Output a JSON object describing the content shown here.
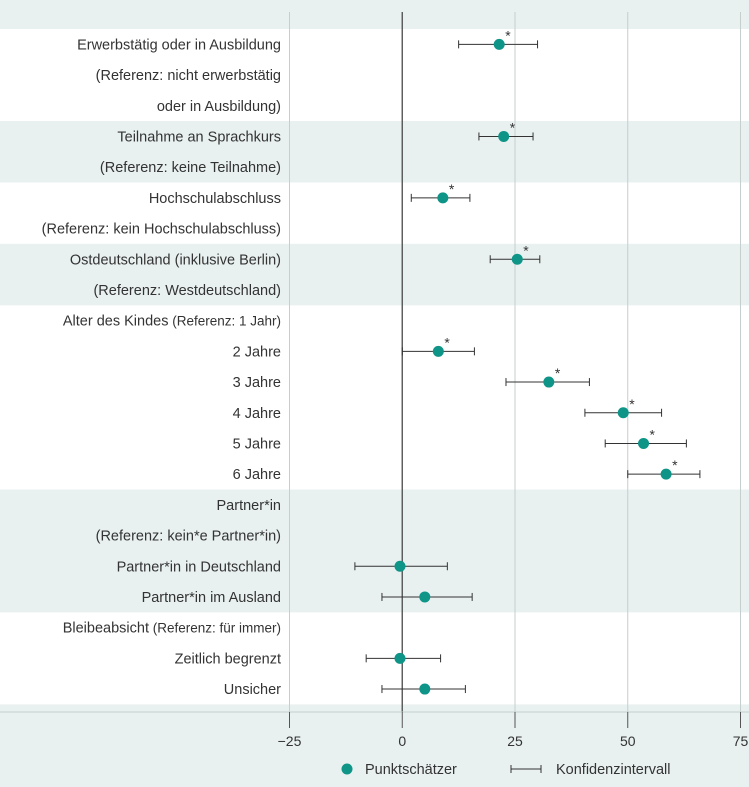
{
  "chart_data": {
    "type": "scatter",
    "subtype": "coefficient-plot-with-confidence-intervals",
    "title": "",
    "xlabel": "",
    "ylabel": "",
    "xlim": [
      -25,
      75
    ],
    "x_ticks": [
      -25,
      0,
      25,
      50,
      75
    ],
    "x_tick_labels": [
      "−25",
      "0",
      "25",
      "50",
      "75"
    ],
    "grid": "vertical",
    "legend": {
      "placement": "bottom-center",
      "point_label": "Punktschätzer",
      "interval_label": "Konfidenzintervall"
    },
    "colors": {
      "point": "#0f9488",
      "band_light": "#e8f1f0",
      "band_white": "#ffffff",
      "grid": "#c4cfce",
      "zero_line": "#555555",
      "text": "#333333"
    },
    "significance_marker": "*",
    "rows": [
      {
        "label": "Erwerbstätig oder in Ausbildung",
        "value": 21.5,
        "lower": 12.5,
        "upper": 30,
        "sig": true
      },
      {
        "label": "(Referenz: nicht erwerbstätig",
        "value": null
      },
      {
        "label": "oder in Ausbildung)",
        "value": null
      },
      {
        "label": "Teilnahme an Sprachkurs",
        "value": 22.5,
        "lower": 17,
        "upper": 29,
        "sig": true
      },
      {
        "label": "(Referenz: keine Teilnahme)",
        "value": null
      },
      {
        "label": "Hochschulabschluss",
        "value": 9,
        "lower": 2,
        "upper": 15,
        "sig": true
      },
      {
        "label": "(Referenz: kein Hochschulabschluss)",
        "value": null
      },
      {
        "label": "Ostdeutschland (inklusive Berlin)",
        "value": 25.5,
        "lower": 19.5,
        "upper": 30.5,
        "sig": true
      },
      {
        "label": "(Referenz: Westdeutschland)",
        "value": null
      },
      {
        "label": "Alter des Kindes",
        "label_suffix": " (Referenz: 1 Jahr)",
        "value": null
      },
      {
        "label": "2 Jahre",
        "value": 8,
        "lower": 0,
        "upper": 16,
        "sig": true
      },
      {
        "label": "3 Jahre",
        "value": 32.5,
        "lower": 23,
        "upper": 41.5,
        "sig": true
      },
      {
        "label": "4 Jahre",
        "value": 49,
        "lower": 40.5,
        "upper": 57.5,
        "sig": true
      },
      {
        "label": "5 Jahre",
        "value": 53.5,
        "lower": 45,
        "upper": 63,
        "sig": true
      },
      {
        "label": "6 Jahre",
        "value": 58.5,
        "lower": 50,
        "upper": 66,
        "sig": true
      },
      {
        "label": "Partner*in",
        "value": null
      },
      {
        "label": "(Referenz: kein*e Partner*in)",
        "value": null
      },
      {
        "label": "Partner*in in Deutschland",
        "value": -0.5,
        "lower": -10.5,
        "upper": 10,
        "sig": false
      },
      {
        "label": "Partner*in im Ausland",
        "value": 5,
        "lower": -4.5,
        "upper": 15.5,
        "sig": false
      },
      {
        "label": "Bleibeabsicht",
        "label_suffix": " (Referenz: für immer)",
        "value": null
      },
      {
        "label": "Zeitlich begrenzt",
        "value": -0.5,
        "lower": -8,
        "upper": 8.5,
        "sig": false
      },
      {
        "label": "Unsicher",
        "value": 5,
        "lower": -4.5,
        "upper": 14,
        "sig": false
      }
    ],
    "groups": [
      {
        "first_row": 0,
        "last_row": 2,
        "shade": "white"
      },
      {
        "first_row": 3,
        "last_row": 4,
        "shade": "light"
      },
      {
        "first_row": 5,
        "last_row": 6,
        "shade": "white"
      },
      {
        "first_row": 7,
        "last_row": 8,
        "shade": "light"
      },
      {
        "first_row": 9,
        "last_row": 14,
        "shade": "white"
      },
      {
        "first_row": 15,
        "last_row": 18,
        "shade": "light"
      },
      {
        "first_row": 19,
        "last_row": 21,
        "shade": "white"
      }
    ]
  }
}
